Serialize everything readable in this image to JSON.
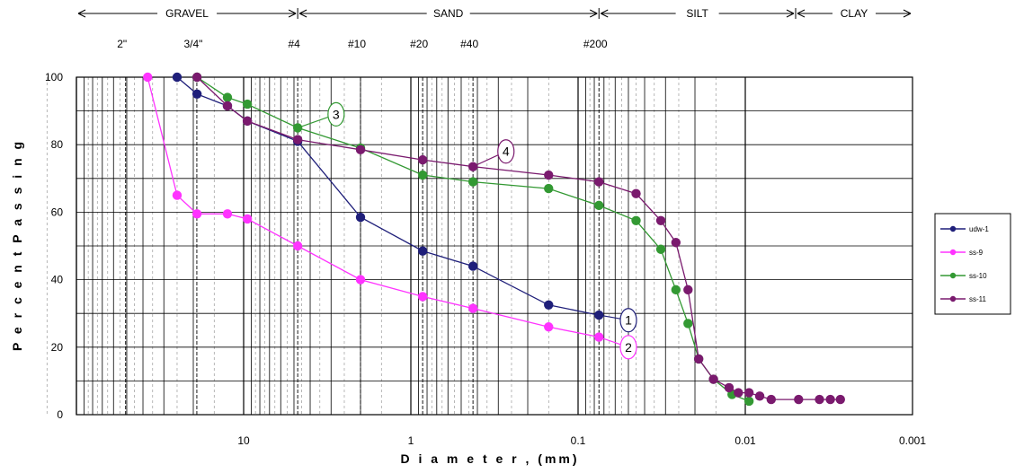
{
  "chart_data": {
    "type": "line",
    "xlabel": "D i a m e t e r , (mm)",
    "ylabel": "P e r c e n t   P a s s i n g",
    "x_scale": "log",
    "x_reversed": true,
    "xlim": [
      100,
      0.001
    ],
    "ylim": [
      0,
      100
    ],
    "x_ticks": [
      {
        "value": 10,
        "label": "10"
      },
      {
        "value": 1,
        "label": "1"
      },
      {
        "value": 0.1,
        "label": "0.1"
      },
      {
        "value": 0.01,
        "label": "0.01"
      },
      {
        "value": 0.001,
        "label": "0.001"
      }
    ],
    "y_ticks": [
      {
        "value": 0,
        "label": "0"
      },
      {
        "value": 20,
        "label": "20"
      },
      {
        "value": 40,
        "label": "40"
      },
      {
        "value": 60,
        "label": "60"
      },
      {
        "value": 80,
        "label": "80"
      },
      {
        "value": 100,
        "label": "100"
      }
    ],
    "grid": true,
    "legend_position": "right",
    "soil_classes": [
      {
        "label": "GRAVEL",
        "from": 100,
        "to": 4.75
      },
      {
        "label": "SAND",
        "from": 4.75,
        "to": 0.075
      },
      {
        "label": "SILT",
        "from": 0.075,
        "to": 0.005
      },
      {
        "label": "CLAY",
        "from": 0.005,
        "to": 0.001
      }
    ],
    "sieves": [
      {
        "label": "2\"",
        "value": 50.8
      },
      {
        "label": "3/4\"",
        "value": 19.05
      },
      {
        "label": "#4",
        "value": 4.75
      },
      {
        "label": "#10",
        "value": 2.0
      },
      {
        "label": "#20",
        "value": 0.85
      },
      {
        "label": "#40",
        "value": 0.425
      },
      {
        "label": "#200",
        "value": 0.075
      }
    ],
    "series": [
      {
        "name": "udw-1",
        "color": "#1f1f7a",
        "x": [
          25,
          19,
          12.5,
          9.5,
          4.75,
          2.0,
          0.85,
          0.425,
          0.15,
          0.075
        ],
        "y": [
          100,
          95,
          91.5,
          87,
          81,
          58.5,
          48.5,
          44,
          32.5,
          29.5
        ],
        "callout": {
          "label": "1",
          "x": 0.05,
          "y": 28
        }
      },
      {
        "name": "ss-9",
        "color": "#ff33ff",
        "x": [
          37.5,
          25,
          19,
          12.5,
          9.5,
          4.75,
          2.0,
          0.85,
          0.425,
          0.15,
          0.075
        ],
        "y": [
          100,
          65,
          59.5,
          59.5,
          58,
          50,
          40,
          35,
          31.5,
          26,
          23
        ],
        "callout": {
          "label": "2",
          "x": 0.05,
          "y": 20
        }
      },
      {
        "name": "ss-10",
        "color": "#339933",
        "x": [
          19,
          12.5,
          9.5,
          4.75,
          2.0,
          0.85,
          0.425,
          0.15,
          0.075,
          0.045,
          0.032,
          0.026,
          0.022,
          0.019,
          0.0155,
          0.012,
          0.0095
        ],
        "y": [
          100,
          94,
          92,
          85,
          79,
          71,
          69,
          67,
          62,
          57.5,
          49,
          37,
          27,
          16.5,
          10.5,
          6,
          4
        ],
        "callout": {
          "label": "3",
          "x": 2.8,
          "y": 89
        }
      },
      {
        "name": "ss-11",
        "color": "#7a1a6e",
        "x": [
          19,
          12.5,
          9.5,
          4.75,
          2.0,
          0.85,
          0.425,
          0.15,
          0.075,
          0.045,
          0.032,
          0.026,
          0.022,
          0.019,
          0.0155,
          0.0125,
          0.011,
          0.0095,
          0.0082,
          0.007,
          0.0048,
          0.0036,
          0.0031,
          0.0027
        ],
        "y": [
          100,
          91.5,
          87,
          81.5,
          78.5,
          75.5,
          73.5,
          71,
          69,
          65.5,
          57.5,
          51,
          37,
          16.5,
          10.5,
          8,
          6.5,
          6.5,
          5.5,
          4.5,
          4.5,
          4.5,
          4.5,
          4.5
        ],
        "callout": {
          "label": "4",
          "x": 0.27,
          "y": 78
        }
      }
    ]
  }
}
